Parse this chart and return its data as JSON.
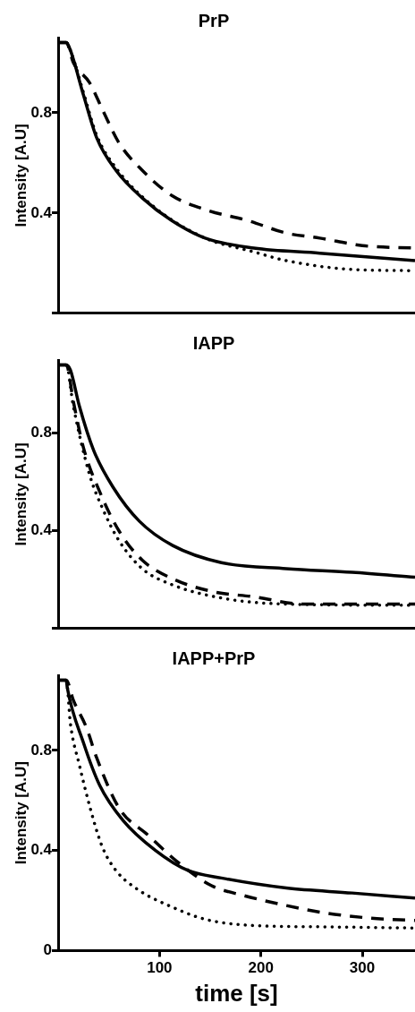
{
  "chart_data": [
    {
      "type": "line",
      "title": "PrP",
      "ylabel": "Intensity [A.U]",
      "xlim": [
        0,
        352
      ],
      "ylim": [
        0,
        1.1
      ],
      "yticks": [
        {
          "value": 0,
          "label": null
        },
        0.4,
        0.8
      ],
      "tick_labels": "y",
      "grid": false,
      "legend": false,
      "marker": "none",
      "series": [
        {
          "color": "#000000",
          "line_style": "solid",
          "x": [
            2,
            8,
            12,
            25,
            38,
            57,
            83,
            112,
            145,
            193,
            258,
            352
          ],
          "values": [
            1.08,
            1.08,
            1.05,
            0.87,
            0.7,
            0.57,
            0.46,
            0.37,
            0.3,
            0.26,
            0.24,
            0.21
          ]
        },
        {
          "color": "#000000",
          "line_style": "dashed",
          "x": [
            2,
            8,
            15,
            31,
            44,
            60,
            83,
            112,
            148,
            187,
            225,
            258,
            300,
            352
          ],
          "values": [
            1.08,
            1.08,
            1.0,
            0.92,
            0.81,
            0.68,
            0.57,
            0.47,
            0.41,
            0.37,
            0.32,
            0.3,
            0.27,
            0.26
          ]
        },
        {
          "color": "#000000",
          "line_style": "dotted",
          "x": [
            2,
            8,
            12,
            25,
            38,
            57,
            96,
            145,
            193,
            225,
            290,
            352
          ],
          "values": [
            1.08,
            1.08,
            1.05,
            0.88,
            0.71,
            0.58,
            0.42,
            0.3,
            0.245,
            0.21,
            0.175,
            0.17
          ]
        }
      ]
    },
    {
      "type": "line",
      "title": "IAPP",
      "ylabel": "Intensity [A.U]",
      "xlim": [
        0,
        352
      ],
      "ylim": [
        0,
        1.1
      ],
      "yticks": [
        {
          "value": 0,
          "label": null
        },
        0.4,
        0.8
      ],
      "tick_labels": "y",
      "grid": false,
      "legend": false,
      "marker": "none",
      "series": [
        {
          "color": "#000000",
          "line_style": "solid",
          "x": [
            2,
            8,
            12,
            21,
            35,
            54,
            80,
            113,
            161,
            225,
            290,
            352
          ],
          "values": [
            1.08,
            1.08,
            1.06,
            0.91,
            0.73,
            0.58,
            0.44,
            0.34,
            0.27,
            0.245,
            0.23,
            0.21
          ]
        },
        {
          "color": "#000000",
          "line_style": "dashed",
          "x": [
            2,
            8,
            15,
            25,
            41,
            60,
            83,
            115,
            154,
            193,
            242,
            352
          ],
          "values": [
            1.08,
            1.08,
            0.93,
            0.74,
            0.56,
            0.4,
            0.28,
            0.2,
            0.15,
            0.13,
            0.1,
            0.1
          ]
        },
        {
          "color": "#000000",
          "line_style": "dotted",
          "x": [
            2,
            8,
            15,
            31,
            44,
            60,
            83,
            112,
            161,
            225,
            352
          ],
          "values": [
            1.08,
            1.08,
            0.91,
            0.63,
            0.49,
            0.36,
            0.245,
            0.18,
            0.125,
            0.1,
            0.095
          ]
        }
      ]
    },
    {
      "type": "line",
      "title": "IAPP+PrP",
      "xlabel": "time [s]",
      "ylabel": "Intensity [A.U]",
      "xlim": [
        0,
        352
      ],
      "ylim": [
        0,
        1.1
      ],
      "xticks": [
        100,
        200,
        300
      ],
      "yticks": [
        0,
        0.4,
        0.8
      ],
      "grid": false,
      "legend": false,
      "marker": "none",
      "series": [
        {
          "color": "#000000",
          "line_style": "solid",
          "x": [
            2,
            8,
            9,
            25,
            41,
            64,
            96,
            128,
            161,
            225,
            290,
            352
          ],
          "values": [
            1.08,
            1.08,
            1.05,
            0.83,
            0.66,
            0.52,
            0.4,
            0.32,
            0.29,
            0.25,
            0.23,
            0.21
          ]
        },
        {
          "color": "#000000",
          "line_style": "dashed",
          "x": [
            2,
            8,
            15,
            28,
            38,
            60,
            89,
            116,
            151,
            183,
            225,
            264,
            307,
            352
          ],
          "values": [
            1.08,
            1.08,
            1.0,
            0.89,
            0.77,
            0.57,
            0.46,
            0.36,
            0.26,
            0.22,
            0.18,
            0.15,
            0.13,
            0.12
          ]
        },
        {
          "color": "#000000",
          "line_style": "dotted",
          "x": [
            2,
            8,
            12,
            21,
            35,
            44,
            57,
            80,
            109,
            145,
            193,
            258,
            352
          ],
          "values": [
            1.08,
            1.08,
            0.91,
            0.74,
            0.52,
            0.41,
            0.32,
            0.24,
            0.18,
            0.125,
            0.1,
            0.095,
            0.09
          ]
        }
      ]
    }
  ]
}
